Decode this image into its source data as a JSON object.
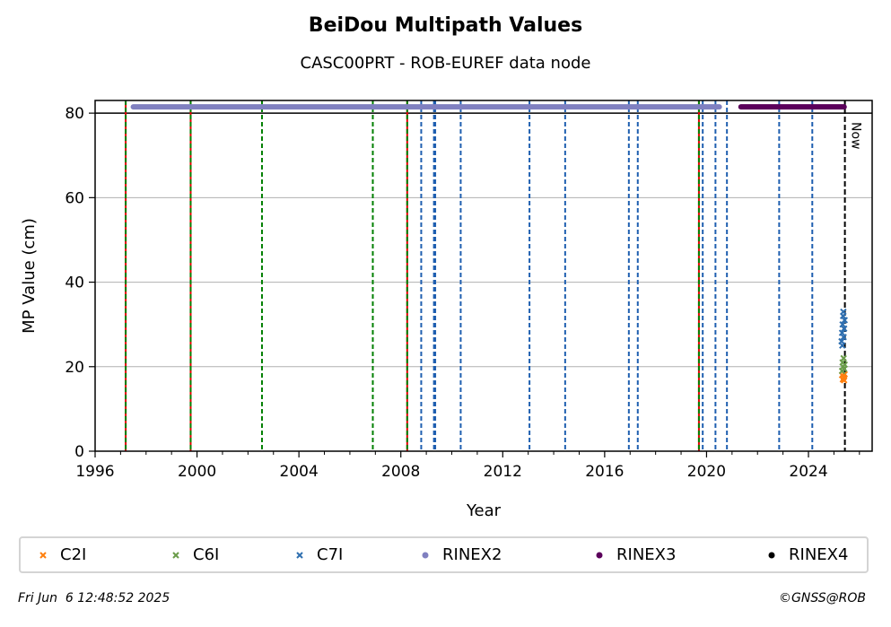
{
  "chart_data": {
    "type": "scatter",
    "title": "BeiDou Multipath Values",
    "subtitle": "CASC00PRT - ROB-EUREF data node",
    "xlabel": "Year",
    "ylabel": "MP Value (cm)",
    "xlim": [
      1996,
      2026.5
    ],
    "ylim": [
      0,
      83
    ],
    "x_ticks": [
      1996,
      2000,
      2004,
      2008,
      2012,
      2016,
      2020,
      2024
    ],
    "y_ticks": [
      0,
      20,
      40,
      60,
      80
    ],
    "grid": "horizontal",
    "reference_line_y": 80,
    "now_label": "Now",
    "now_x": 2025.43,
    "green_events": [
      1997.2,
      1999.75,
      2002.55,
      2006.9,
      2008.25,
      2019.7
    ],
    "red_events": [
      1997.2,
      1999.75,
      2008.25,
      2019.7
    ],
    "blue_events": [
      2008.8,
      2009.3,
      2009.35,
      2010.35,
      2013.05,
      2014.45,
      2016.95,
      2017.3,
      2019.85,
      2020.35,
      2020.8,
      2022.85,
      2024.15
    ],
    "series": [
      {
        "name": "C2I",
        "color": "#ff7f0e",
        "marker": "x",
        "x": [
          2025.32,
          2025.35,
          2025.38,
          2025.4,
          2025.42
        ],
        "y": [
          18,
          17,
          17.5,
          16.8,
          18.2
        ]
      },
      {
        "name": "C6I",
        "color": "#6a9c4a",
        "marker": "x",
        "x": [
          2025.32,
          2025.34,
          2025.36,
          2025.38,
          2025.4,
          2025.42
        ],
        "y": [
          19,
          21,
          20,
          22,
          19.5,
          20.5
        ]
      },
      {
        "name": "C7I",
        "color": "#2f6fb0",
        "marker": "x",
        "x": [
          2025.3,
          2025.32,
          2025.34,
          2025.36,
          2025.38,
          2025.4,
          2025.42,
          2025.33,
          2025.37
        ],
        "y": [
          26,
          28,
          30,
          32,
          27,
          29,
          31,
          25,
          33
        ]
      },
      {
        "name": "RINEX2",
        "color": "#8080c0",
        "marker": "o",
        "x_start": 1997.5,
        "x_end": 2020.5,
        "y": 81.5
      },
      {
        "name": "RINEX3",
        "color": "#5b005b",
        "marker": "o",
        "x_start": 2021.35,
        "x_end": 2025.4,
        "y": 81.5
      },
      {
        "name": "RINEX4",
        "color": "#000000",
        "marker": "o",
        "x_start": null,
        "x_end": null,
        "y": null
      }
    ]
  },
  "footer": {
    "timestamp": "Fri Jun  6 12:48:52 2025",
    "credit": "©GNSS@ROB"
  }
}
